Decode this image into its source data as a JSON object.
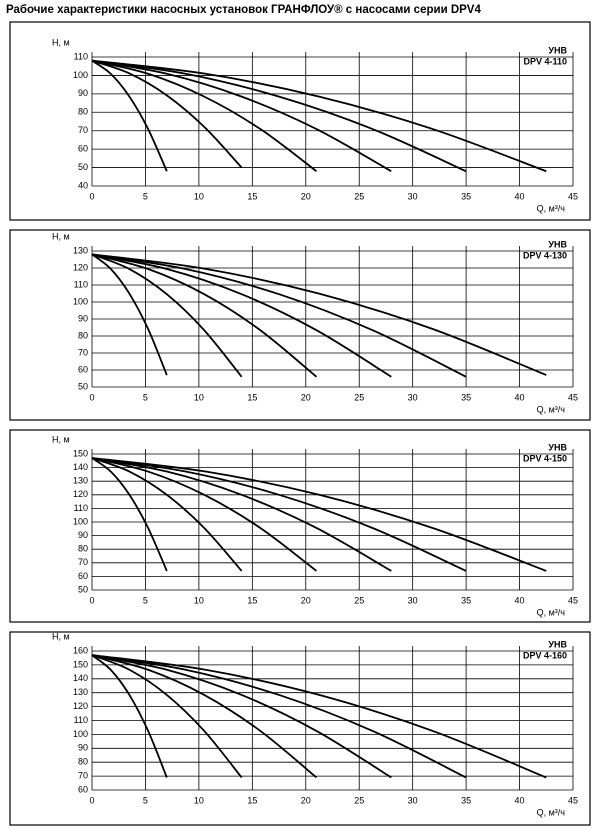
{
  "title": "Рабочие характеристики насосных установок  ГРАНФЛОУ® с насосами серии DPV4",
  "chart_data": [
    {
      "type": "line",
      "y_label": "H, м",
      "x_label": "Q, м³/ч",
      "annotations": [
        "УНВ",
        "DPV 4-110"
      ],
      "xlim": [
        0,
        45
      ],
      "xticks": [
        0,
        5,
        10,
        15,
        20,
        25,
        30,
        35,
        40,
        45
      ],
      "ylim": [
        40,
        110
      ],
      "yticks": [
        40,
        50,
        60,
        70,
        80,
        90,
        100,
        110
      ],
      "grid": true,
      "series": [
        {
          "color": "#000000",
          "x": [
            0,
            1.75,
            3.5,
            5.25,
            7
          ],
          "values": [
            108,
            100.9,
            88.5,
            70.9,
            48
          ]
        },
        {
          "color": "#000000",
          "x": [
            0,
            3.5,
            7,
            10.5,
            14
          ],
          "values": [
            108,
            101.1,
            89.2,
            72.1,
            50
          ]
        },
        {
          "color": "#000000",
          "x": [
            0,
            5.25,
            10.5,
            15.75,
            21
          ],
          "values": [
            108,
            100.9,
            88.5,
            70.9,
            48
          ]
        },
        {
          "color": "#000000",
          "x": [
            0,
            7,
            14,
            21,
            28
          ],
          "values": [
            108,
            100.9,
            88.5,
            70.9,
            48
          ]
        },
        {
          "color": "#000000",
          "x": [
            0,
            8.75,
            17.5,
            26.25,
            35
          ],
          "values": [
            108,
            100.9,
            88.5,
            70.9,
            48
          ]
        },
        {
          "color": "#000000",
          "x": [
            0,
            10.625,
            21.25,
            31.875,
            42.5
          ],
          "values": [
            108,
            100.9,
            88.5,
            70.9,
            48
          ]
        }
      ]
    },
    {
      "type": "line",
      "y_label": "H, м",
      "x_label": "Q, м³/ч",
      "annotations": [
        "УНВ",
        "DPV 4-130"
      ],
      "xlim": [
        0,
        45
      ],
      "xticks": [
        0,
        5,
        10,
        15,
        20,
        25,
        30,
        35,
        40,
        45
      ],
      "ylim": [
        50,
        130
      ],
      "yticks": [
        50,
        60,
        70,
        80,
        90,
        100,
        110,
        120,
        130
      ],
      "grid": true,
      "series": [
        {
          "color": "#000000",
          "x": [
            0,
            1.75,
            3.5,
            5.25,
            7
          ],
          "values": [
            128,
            119.5,
            104.9,
            84.1,
            57
          ]
        },
        {
          "color": "#000000",
          "x": [
            0,
            3.5,
            7,
            10.5,
            14
          ],
          "values": [
            128,
            119.4,
            104.6,
            83.4,
            56
          ]
        },
        {
          "color": "#000000",
          "x": [
            0,
            5.25,
            10.5,
            15.75,
            21
          ],
          "values": [
            128,
            119.4,
            104.6,
            83.4,
            56
          ]
        },
        {
          "color": "#000000",
          "x": [
            0,
            7,
            14,
            21,
            28
          ],
          "values": [
            128,
            119.4,
            104.6,
            83.4,
            56
          ]
        },
        {
          "color": "#000000",
          "x": [
            0,
            8.75,
            17.5,
            26.25,
            35
          ],
          "values": [
            128,
            119.4,
            104.6,
            83.4,
            56
          ]
        },
        {
          "color": "#000000",
          "x": [
            0,
            10.625,
            21.25,
            31.875,
            42.5
          ],
          "values": [
            128,
            119.5,
            104.9,
            84.1,
            57
          ]
        }
      ]
    },
    {
      "type": "line",
      "y_label": "H, м",
      "x_label": "Q, м³/ч",
      "annotations": [
        "УНВ",
        "DPV 4-150"
      ],
      "xlim": [
        0,
        45
      ],
      "xticks": [
        0,
        5,
        10,
        15,
        20,
        25,
        30,
        35,
        40,
        45
      ],
      "ylim": [
        50,
        150
      ],
      "yticks": [
        50,
        60,
        70,
        80,
        90,
        100,
        110,
        120,
        130,
        140,
        150
      ],
      "grid": true,
      "series": [
        {
          "color": "#000000",
          "x": [
            0,
            1.75,
            3.5,
            5.25,
            7
          ],
          "values": [
            147,
            137.1,
            120,
            95.6,
            64
          ]
        },
        {
          "color": "#000000",
          "x": [
            0,
            3.5,
            7,
            10.5,
            14
          ],
          "values": [
            147,
            137.1,
            120,
            95.6,
            64
          ]
        },
        {
          "color": "#000000",
          "x": [
            0,
            5.25,
            10.5,
            15.75,
            21
          ],
          "values": [
            147,
            137.1,
            120,
            95.6,
            64
          ]
        },
        {
          "color": "#000000",
          "x": [
            0,
            7,
            14,
            21,
            28
          ],
          "values": [
            147,
            137.1,
            120,
            95.6,
            64
          ]
        },
        {
          "color": "#000000",
          "x": [
            0,
            8.75,
            17.5,
            26.25,
            35
          ],
          "values": [
            147,
            137.1,
            120,
            95.6,
            64
          ]
        },
        {
          "color": "#000000",
          "x": [
            0,
            10.625,
            21.25,
            31.875,
            42.5
          ],
          "values": [
            147,
            137.1,
            120,
            95.6,
            64
          ]
        }
      ]
    },
    {
      "type": "line",
      "y_label": "H, м",
      "x_label": "Q, м³/ч",
      "annotations": [
        "УНВ",
        "DPV 4-160"
      ],
      "xlim": [
        0,
        45
      ],
      "xticks": [
        0,
        5,
        10,
        15,
        20,
        25,
        30,
        35,
        40,
        45
      ],
      "ylim": [
        60,
        160
      ],
      "yticks": [
        60,
        70,
        80,
        90,
        100,
        110,
        120,
        130,
        140,
        150,
        160
      ],
      "grid": true,
      "series": [
        {
          "color": "#000000",
          "x": [
            0,
            1.75,
            3.5,
            5.25,
            7
          ],
          "values": [
            157,
            146.5,
            128.4,
            102.5,
            69
          ]
        },
        {
          "color": "#000000",
          "x": [
            0,
            3.5,
            7,
            10.5,
            14
          ],
          "values": [
            157,
            146.5,
            128.4,
            102.5,
            69
          ]
        },
        {
          "color": "#000000",
          "x": [
            0,
            5.25,
            10.5,
            15.75,
            21
          ],
          "values": [
            157,
            146.5,
            128.4,
            102.5,
            69
          ]
        },
        {
          "color": "#000000",
          "x": [
            0,
            7,
            14,
            21,
            28
          ],
          "values": [
            157,
            146.5,
            128.4,
            102.5,
            69
          ]
        },
        {
          "color": "#000000",
          "x": [
            0,
            8.75,
            17.5,
            26.25,
            35
          ],
          "values": [
            157,
            146.5,
            128.4,
            102.5,
            69
          ]
        },
        {
          "color": "#000000",
          "x": [
            0,
            10.625,
            21.25,
            31.875,
            42.5
          ],
          "values": [
            157,
            146.5,
            128.4,
            102.5,
            69
          ]
        }
      ]
    }
  ]
}
